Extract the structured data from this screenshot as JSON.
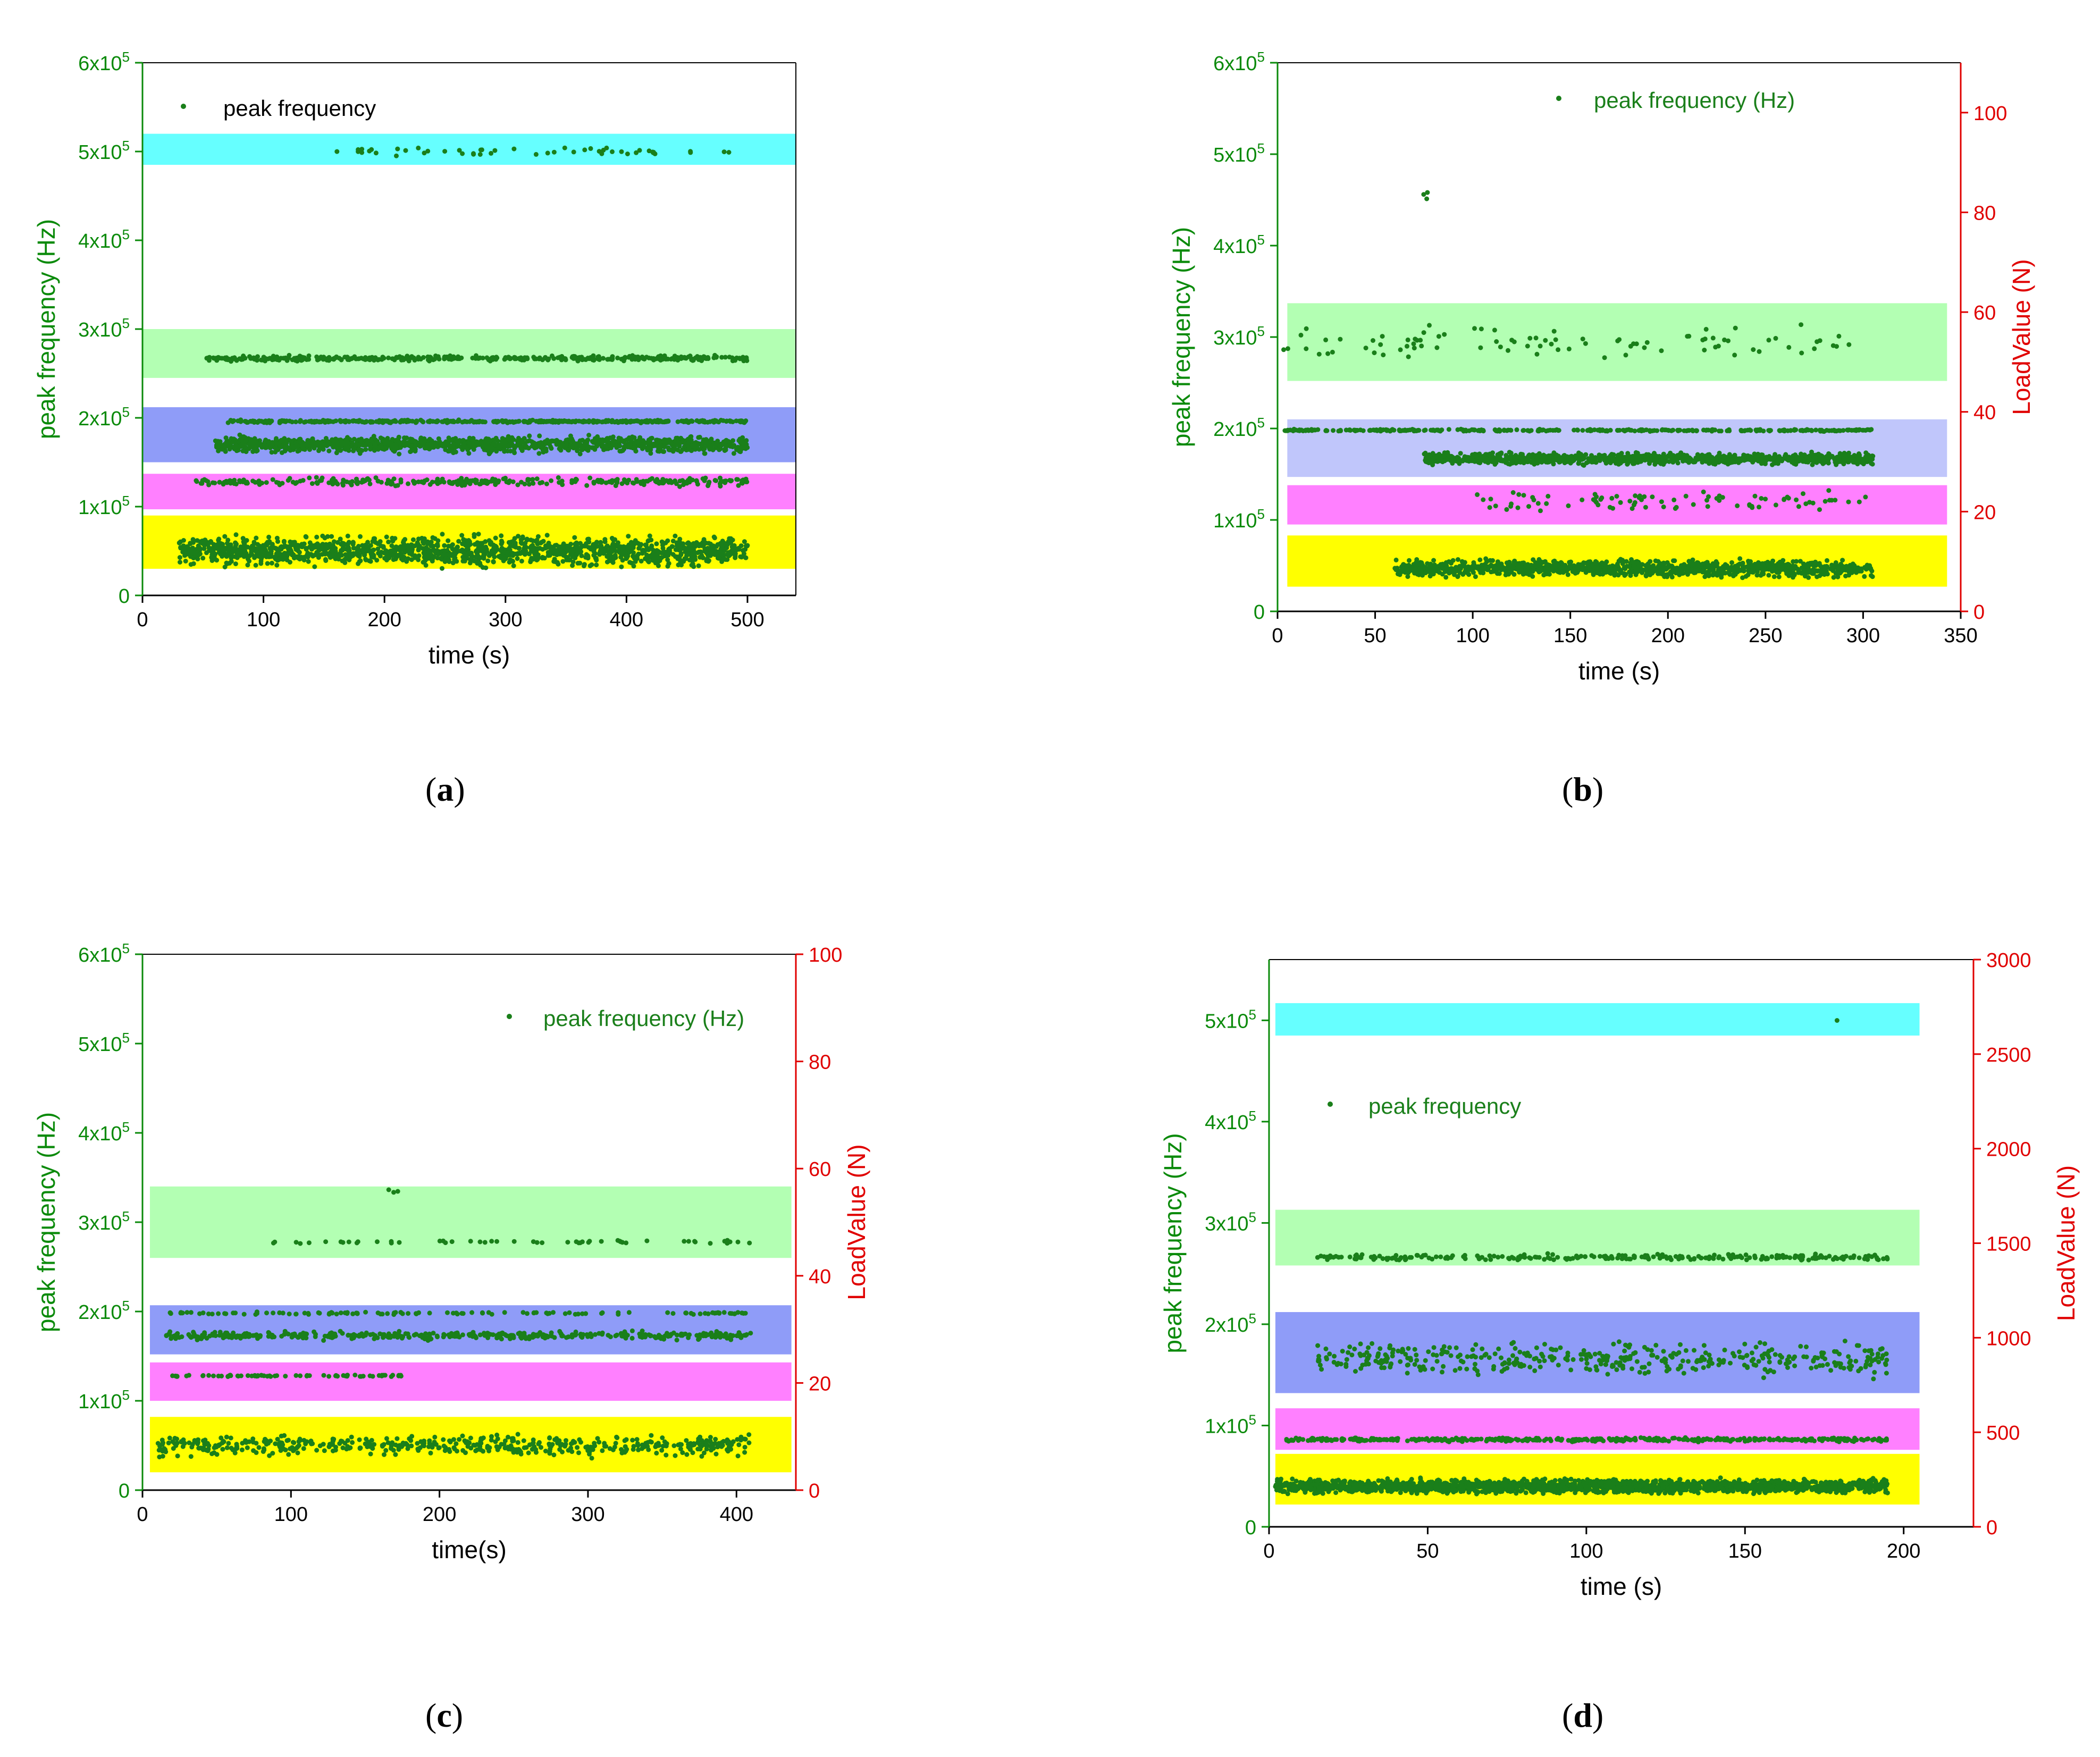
{
  "colors": {
    "points": "#1a7f1a",
    "left_axis": "#0a8a0a",
    "right_axis": "#e00000",
    "band_cyan": "#66ffff",
    "band_green": "#b3ffb3",
    "band_blue": "#8f9cf8",
    "band_lightblue": "#c0c6fb",
    "band_magenta": "#ff80ff",
    "band_yellow": "#ffff00"
  },
  "chart_data": [
    {
      "id": "a",
      "type": "scatter",
      "caption": "a",
      "xlabel": "time (s)",
      "ylabel": "peak frequency (Hz)",
      "xlim": [
        0,
        540
      ],
      "xticks": [
        0,
        100,
        200,
        300,
        400,
        500
      ],
      "ylim": [
        0,
        600000
      ],
      "yticks": [
        {
          "value": 0,
          "label": "0"
        },
        {
          "value": 100000,
          "label": "1x10",
          "exp": "5"
        },
        {
          "value": 200000,
          "label": "2x10",
          "exp": "5"
        },
        {
          "value": 300000,
          "label": "3x10",
          "exp": "5"
        },
        {
          "value": 400000,
          "label": "4x10",
          "exp": "5"
        },
        {
          "value": 500000,
          "label": "5x10",
          "exp": "5"
        },
        {
          "value": 600000,
          "label": "6x10",
          "exp": "5"
        }
      ],
      "legend": {
        "label": "peak frequency",
        "placement": "top-left"
      },
      "bands": [
        {
          "x0": 0,
          "x1": 540,
          "y0": 485000,
          "y1": 520000,
          "color": "band_cyan"
        },
        {
          "x0": 0,
          "x1": 540,
          "y0": 245000,
          "y1": 300000,
          "color": "band_green"
        },
        {
          "x0": 0,
          "x1": 540,
          "y0": 150000,
          "y1": 212000,
          "color": "band_blue"
        },
        {
          "x0": 0,
          "x1": 540,
          "y0": 97000,
          "y1": 137000,
          "color": "band_magenta"
        },
        {
          "x0": 0,
          "x1": 540,
          "y0": 30000,
          "y1": 90000,
          "color": "band_yellow"
        }
      ],
      "series": [
        {
          "name": "cyan cluster",
          "x_range": [
            160,
            500
          ],
          "y_center": 500000,
          "y_spread": 6000,
          "count": 50,
          "seed": 11
        },
        {
          "name": "green cluster",
          "x_range": [
            50,
            500
          ],
          "y_center": 267000,
          "y_spread": 4000,
          "count": 420,
          "seed": 12
        },
        {
          "name": "blue band 195k",
          "x_range": [
            70,
            500
          ],
          "y_center": 196000,
          "y_spread": 2000,
          "count": 420,
          "seed": 13
        },
        {
          "name": "blue band 170k",
          "x_range": [
            60,
            500
          ],
          "y_center": 170000,
          "y_spread": 12000,
          "count": 1200,
          "seed": 14
        },
        {
          "name": "magenta band",
          "x_range": [
            40,
            500
          ],
          "y_center": 128000,
          "y_spread": 6000,
          "count": 320,
          "seed": 15
        },
        {
          "name": "yellow band",
          "x_range": [
            30,
            500
          ],
          "y_center": 50000,
          "y_spread": 22000,
          "count": 1500,
          "seed": 16
        }
      ]
    },
    {
      "id": "b",
      "type": "scatter",
      "caption": "b",
      "xlabel": "time (s)",
      "ylabel": "peak frequency (Hz)",
      "y2label": "LoadValue (N)",
      "xlim": [
        0,
        350
      ],
      "xticks": [
        0,
        50,
        100,
        150,
        200,
        250,
        300,
        350
      ],
      "ylim": [
        0,
        600000
      ],
      "yticks": [
        {
          "value": 0,
          "label": "0"
        },
        {
          "value": 100000,
          "label": "1x10",
          "exp": "5"
        },
        {
          "value": 200000,
          "label": "2x10",
          "exp": "5"
        },
        {
          "value": 300000,
          "label": "3x10",
          "exp": "5"
        },
        {
          "value": 400000,
          "label": "4x10",
          "exp": "5"
        },
        {
          "value": 500000,
          "label": "5x10",
          "exp": "5"
        },
        {
          "value": 600000,
          "label": "6x10",
          "exp": "5"
        }
      ],
      "y2lim": [
        0,
        110
      ],
      "y2ticks": [
        0,
        20,
        40,
        60,
        80,
        100
      ],
      "legend": {
        "label": "peak frequency (Hz)",
        "placement": "top-center"
      },
      "bands": [
        {
          "x0": 5,
          "x1": 343,
          "y0": 252000,
          "y1": 337000,
          "color": "band_green"
        },
        {
          "x0": 5,
          "x1": 343,
          "y0": 147000,
          "y1": 210000,
          "color": "band_lightblue"
        },
        {
          "x0": 5,
          "x1": 343,
          "y0": 95000,
          "y1": 138000,
          "color": "band_magenta"
        },
        {
          "x0": 5,
          "x1": 343,
          "y0": 27000,
          "y1": 83000,
          "color": "band_yellow"
        }
      ],
      "series": [
        {
          "name": "outliers",
          "x_range": [
            74,
            80
          ],
          "y_center": 455000,
          "y_spread": 6000,
          "count": 3,
          "seed": 21
        },
        {
          "name": "green cluster",
          "x_range": [
            0,
            300
          ],
          "y_center": 295000,
          "y_spread": 25000,
          "count": 90,
          "seed": 22
        },
        {
          "name": "line 198k",
          "x_range": [
            0,
            305
          ],
          "y_center": 198000,
          "y_spread": 1500,
          "count": 320,
          "seed": 23
        },
        {
          "name": "blue cluster",
          "x_range": [
            75,
            305
          ],
          "y_center": 167000,
          "y_spread": 8000,
          "count": 1100,
          "seed": 24
        },
        {
          "name": "magenta cluster",
          "x_range": [
            100,
            305
          ],
          "y_center": 120000,
          "y_spread": 14000,
          "count": 90,
          "seed": 25
        },
        {
          "name": "yellow cluster",
          "x_range": [
            60,
            305
          ],
          "y_center": 47000,
          "y_spread": 12000,
          "count": 1100,
          "seed": 26
        }
      ]
    },
    {
      "id": "c",
      "type": "scatter",
      "caption": "c",
      "xlabel": "time(s)",
      "ylabel": "peak frequency (Hz)",
      "y2label": "LoadValue (N)",
      "xlim": [
        0,
        440
      ],
      "xticks": [
        0,
        100,
        200,
        300,
        400
      ],
      "ylim": [
        0,
        600000
      ],
      "yticks": [
        {
          "value": 0,
          "label": "0"
        },
        {
          "value": 100000,
          "label": "1x10",
          "exp": "5"
        },
        {
          "value": 200000,
          "label": "2x10",
          "exp": "5"
        },
        {
          "value": 300000,
          "label": "3x10",
          "exp": "5"
        },
        {
          "value": 400000,
          "label": "4x10",
          "exp": "5"
        },
        {
          "value": 500000,
          "label": "5x10",
          "exp": "5"
        },
        {
          "value": 600000,
          "label": "6x10",
          "exp": "5"
        }
      ],
      "y2lim": [
        0,
        100
      ],
      "y2ticks": [
        0,
        20,
        40,
        60,
        80,
        100
      ],
      "legend": {
        "label": "peak frequency (Hz)",
        "placement": "top-right"
      },
      "bands": [
        {
          "x0": 5,
          "x1": 437,
          "y0": 260000,
          "y1": 340000,
          "color": "band_green"
        },
        {
          "x0": 5,
          "x1": 437,
          "y0": 152000,
          "y1": 207000,
          "color": "band_blue"
        },
        {
          "x0": 5,
          "x1": 437,
          "y0": 100000,
          "y1": 143000,
          "color": "band_magenta"
        },
        {
          "x0": 5,
          "x1": 437,
          "y0": 20000,
          "y1": 82000,
          "color": "band_yellow"
        }
      ],
      "series": [
        {
          "name": "outliers",
          "x_range": [
            165,
            172
          ],
          "y_center": 335000,
          "y_spread": 4000,
          "count": 3,
          "seed": 31
        },
        {
          "name": "green cluster",
          "x_range": [
            85,
            410
          ],
          "y_center": 278000,
          "y_spread": 3000,
          "count": 55,
          "seed": 32
        },
        {
          "name": "line 198k",
          "x_range": [
            10,
            410
          ],
          "y_center": 198000,
          "y_spread": 2000,
          "count": 120,
          "seed": 33
        },
        {
          "name": "blue cluster",
          "x_range": [
            15,
            410
          ],
          "y_center": 173000,
          "y_spread": 6000,
          "count": 420,
          "seed": 34
        },
        {
          "name": "magenta line",
          "x_range": [
            20,
            175
          ],
          "y_center": 128000,
          "y_spread": 1500,
          "count": 70,
          "seed": 35
        },
        {
          "name": "yellow cluster",
          "x_range": [
            10,
            410
          ],
          "y_center": 50000,
          "y_spread": 15000,
          "count": 520,
          "seed": 36
        }
      ]
    },
    {
      "id": "d",
      "type": "scatter",
      "caption": "d",
      "xlabel": "time (s)",
      "ylabel": "peak frequency (Hz)",
      "y2label": "LoadValue (N)",
      "xlim": [
        0,
        222
      ],
      "xticks": [
        0,
        50,
        100,
        150,
        200
      ],
      "ylim": [
        0,
        560000
      ],
      "yticks": [
        {
          "value": 0,
          "label": "0"
        },
        {
          "value": 100000,
          "label": "1x10",
          "exp": "5"
        },
        {
          "value": 200000,
          "label": "2x10",
          "exp": "5"
        },
        {
          "value": 300000,
          "label": "3x10",
          "exp": "5"
        },
        {
          "value": 400000,
          "label": "4x10",
          "exp": "5"
        },
        {
          "value": 500000,
          "label": "5x10",
          "exp": "5"
        }
      ],
      "y2lim": [
        0,
        3000
      ],
      "y2ticks": [
        0,
        500,
        1000,
        1500,
        2000,
        2500,
        3000
      ],
      "legend": {
        "label": "peak frequency",
        "placement": "upper-left"
      },
      "bands": [
        {
          "x0": 2,
          "x1": 205,
          "y0": 485000,
          "y1": 517000,
          "color": "band_cyan"
        },
        {
          "x0": 2,
          "x1": 205,
          "y0": 258000,
          "y1": 313000,
          "color": "band_green"
        },
        {
          "x0": 2,
          "x1": 205,
          "y0": 132000,
          "y1": 212000,
          "color": "band_blue"
        },
        {
          "x0": 2,
          "x1": 205,
          "y0": 76000,
          "y1": 117000,
          "color": "band_magenta"
        },
        {
          "x0": 2,
          "x1": 205,
          "y0": 22000,
          "y1": 72000,
          "color": "band_yellow"
        }
      ],
      "series": [
        {
          "name": "cyan point",
          "x_range": [
            178,
            180
          ],
          "y_center": 500000,
          "y_spread": 500,
          "count": 1,
          "seed": 41
        },
        {
          "name": "green cluster",
          "x_range": [
            15,
            195
          ],
          "y_center": 266000,
          "y_spread": 4000,
          "count": 260,
          "seed": 42
        },
        {
          "name": "blue cluster",
          "x_range": [
            15,
            195
          ],
          "y_center": 165000,
          "y_spread": 22000,
          "count": 420,
          "seed": 43
        },
        {
          "name": "magenta line",
          "x_range": [
            5,
            195
          ],
          "y_center": 86000,
          "y_spread": 2500,
          "count": 420,
          "seed": 44
        },
        {
          "name": "yellow cluster",
          "x_range": [
            2,
            195
          ],
          "y_center": 40000,
          "y_spread": 9000,
          "count": 1800,
          "seed": 45
        }
      ]
    }
  ]
}
